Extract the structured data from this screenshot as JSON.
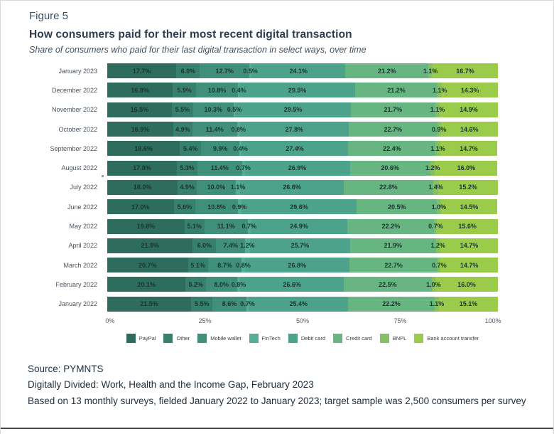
{
  "figure_label": "Figure 5",
  "title": "How consumers paid for their most recent digital transaction",
  "subtitle": "Share of consumers who paid for their last digital transaction in select ways, over time",
  "footer": {
    "source": "Source: PYMNTS",
    "report": "Digitally Divided: Work, Health and the Income Gap, February 2023",
    "note": "Based on 13 monthly surveys, fielded January 2022 to January 2023; target sample was 2,500 consumers per survey"
  },
  "chart_data": {
    "type": "bar",
    "orientation": "horizontal-stacked",
    "title": "How consumers paid for their most recent digital transaction",
    "xlabel": "",
    "ylabel": "",
    "xlim": [
      0,
      100
    ],
    "value_suffix": "%",
    "legend_position": "bottom",
    "grid": false,
    "xticks": [
      "0%",
      "25%",
      "50%",
      "75%",
      "100%"
    ],
    "categories": [
      "January 2023",
      "December 2022",
      "November 2022",
      "October 2022",
      "September 2022",
      "August 2022",
      "July 2022",
      "June 2022",
      "May 2022",
      "April 2022",
      "March 2022",
      "February 2022",
      "January 2022"
    ],
    "series": [
      {
        "name": "PayPal",
        "color": "#2E6D5E",
        "values": [
          17.7,
          16.8,
          16.5,
          16.9,
          18.6,
          17.8,
          18.0,
          17.0,
          19.8,
          21.9,
          20.7,
          20.1,
          21.5
        ]
      },
      {
        "name": "Other",
        "color": "#38806E",
        "values": [
          6.0,
          5.9,
          5.5,
          4.9,
          5.4,
          5.3,
          4.9,
          5.6,
          5.1,
          6.0,
          5.1,
          5.2,
          5.5
        ]
      },
      {
        "name": "Mobile wallet",
        "color": "#3F8F7B",
        "values": [
          12.7,
          10.8,
          10.3,
          11.4,
          9.9,
          11.4,
          10.0,
          10.8,
          11.1,
          7.4,
          8.7,
          8.0,
          8.6
        ]
      },
      {
        "name": "FinTech",
        "color": "#55AD95",
        "values": [
          0.5,
          0.4,
          0.5,
          0.8,
          0.4,
          0.7,
          1.1,
          0.9,
          0.7,
          1.2,
          0.8,
          0.8,
          0.7
        ]
      },
      {
        "name": "Debit card",
        "color": "#4CA28A",
        "values": [
          24.1,
          29.5,
          29.5,
          27.8,
          27.4,
          26.9,
          26.6,
          29.6,
          24.9,
          25.7,
          26.8,
          26.6,
          25.4
        ]
      },
      {
        "name": "Credit card",
        "color": "#67B682",
        "values": [
          21.2,
          21.2,
          21.7,
          22.7,
          22.4,
          20.6,
          22.8,
          20.5,
          22.2,
          21.9,
          22.7,
          22.5,
          22.2
        ]
      },
      {
        "name": "BNPL",
        "color": "#85C163",
        "values": [
          1.1,
          1.1,
          1.1,
          0.9,
          1.1,
          1.2,
          1.4,
          1.0,
          0.7,
          1.2,
          0.7,
          1.0,
          1.1
        ]
      },
      {
        "name": "Bank account transfer",
        "color": "#9ACB4B",
        "values": [
          16.7,
          14.3,
          14.9,
          14.6,
          14.7,
          16.0,
          15.2,
          14.5,
          15.6,
          14.7,
          14.7,
          16.0,
          15.1
        ]
      }
    ]
  }
}
